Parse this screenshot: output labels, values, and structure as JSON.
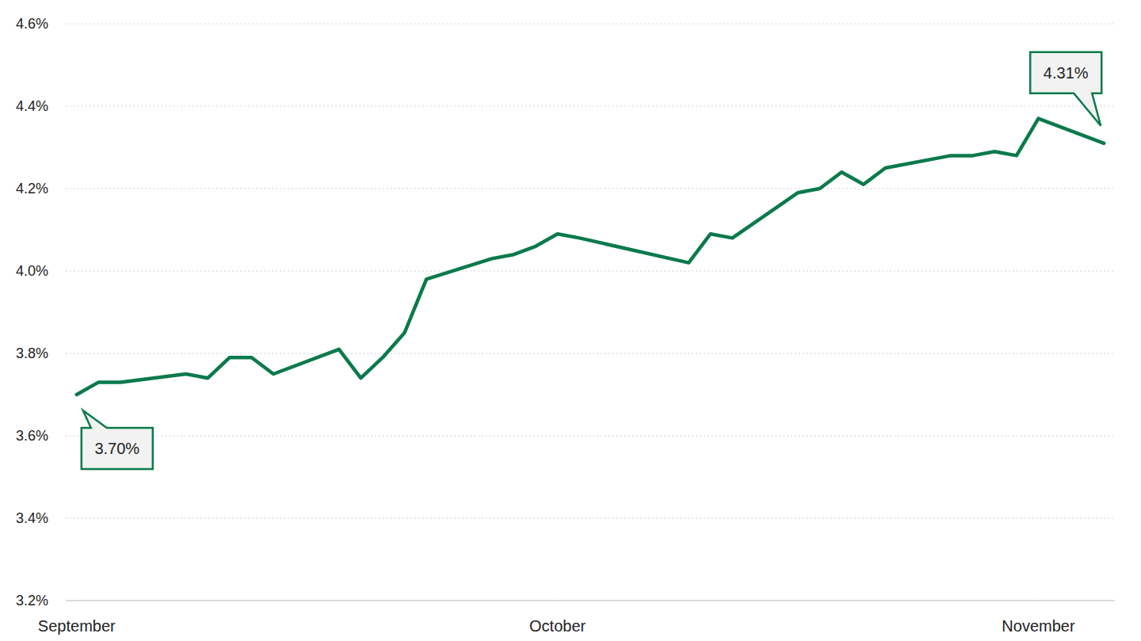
{
  "chart_data": {
    "type": "line",
    "x": [
      0,
      1,
      2,
      5,
      6,
      7,
      8,
      9,
      12,
      13,
      14,
      15,
      16,
      19,
      20,
      21,
      22,
      23,
      28,
      29,
      30,
      33,
      34,
      35,
      36,
      37,
      40,
      41,
      42,
      43,
      44,
      47
    ],
    "values": [
      3.7,
      3.73,
      3.73,
      3.75,
      3.74,
      3.79,
      3.79,
      3.75,
      3.81,
      3.74,
      3.79,
      3.85,
      3.98,
      4.03,
      4.04,
      4.06,
      4.09,
      4.08,
      4.02,
      4.09,
      4.08,
      4.19,
      4.2,
      4.24,
      4.21,
      4.25,
      4.28,
      4.28,
      4.29,
      4.28,
      4.37,
      4.31
    ],
    "color": "#0b7a4b",
    "xlim": [
      -0.5,
      47.5
    ],
    "xticks": [
      {
        "value": 0,
        "label": "September"
      },
      {
        "value": 22,
        "label": "October"
      },
      {
        "value": 44,
        "label": "November"
      }
    ],
    "ylim": [
      3.2,
      4.6
    ],
    "yticks": [
      {
        "value": 3.2,
        "label": "3.2%"
      },
      {
        "value": 3.4,
        "label": "3.4%"
      },
      {
        "value": 3.6,
        "label": "3.6%"
      },
      {
        "value": 3.8,
        "label": "3.8%"
      },
      {
        "value": 4.0,
        "label": "4.0%"
      },
      {
        "value": 4.2,
        "label": "4.2%"
      },
      {
        "value": 4.4,
        "label": "4.4%"
      },
      {
        "value": 4.6,
        "label": "4.6%"
      }
    ],
    "grid": true,
    "annotations": [
      "3.70%",
      "4.31%"
    ]
  }
}
